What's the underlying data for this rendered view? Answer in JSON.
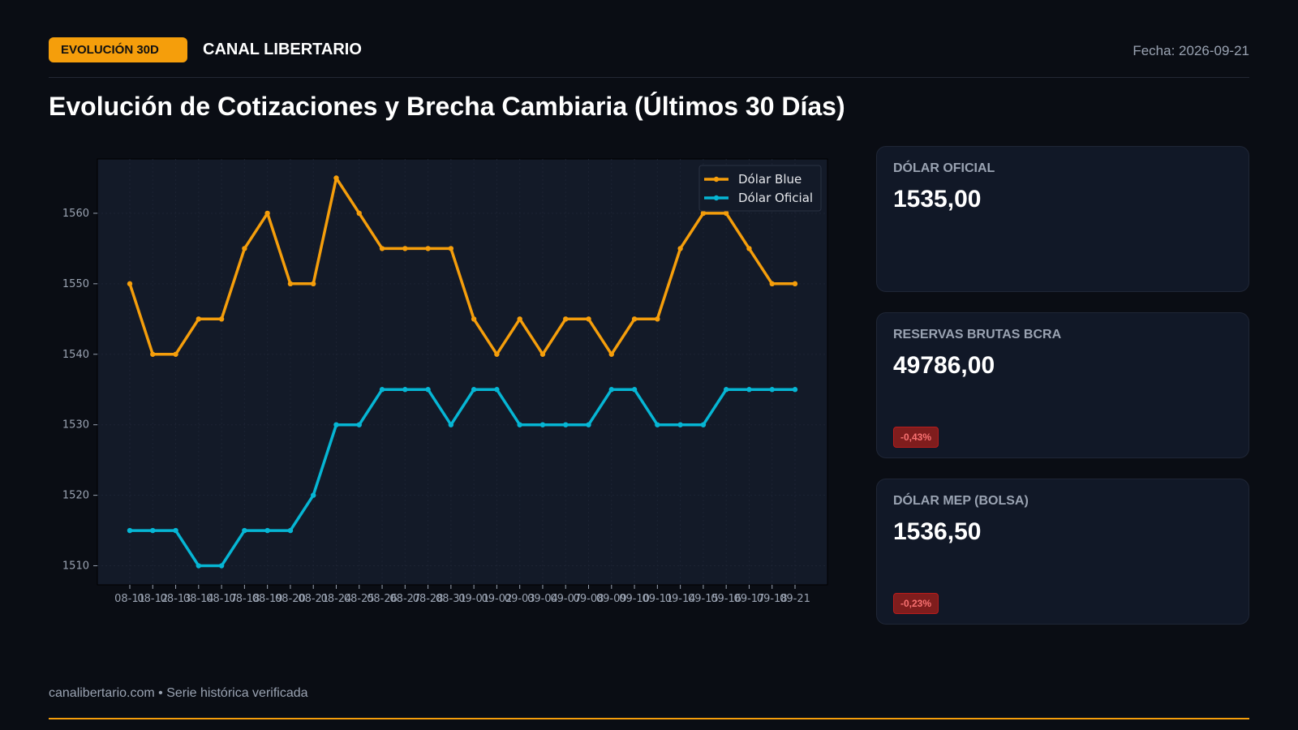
{
  "header": {
    "badge": "EVOLUCIÓN 30D",
    "brand": "CANAL LIBERTARIO",
    "date": "Fecha: 2026-09-21"
  },
  "title": "Evolución de Cotizaciones y Brecha Cambiaria (Últimos 30 Días)",
  "cards": [
    {
      "label": "DÓLAR OFICIAL",
      "value": "1535,00",
      "change": ""
    },
    {
      "label": "RESERVAS BRUTAS BCRA",
      "value": "49786,00",
      "change": "-0,43%"
    },
    {
      "label": "DÓLAR MEP (BOLSA)",
      "value": "1536,50",
      "change": "-0,23%"
    }
  ],
  "footer": {
    "text": "canalibertario.com • Serie histórica verificada"
  },
  "colors": {
    "accent": "#f59e0b",
    "blue_series": "#f59e0b",
    "oficial_series": "#06b6d4",
    "negative": "#ef4444"
  },
  "chart_data": {
    "type": "line",
    "title": "",
    "xlabel": "",
    "ylabel": "",
    "x": [
      "08-11",
      "08-12",
      "08-13",
      "08-14",
      "08-17",
      "08-18",
      "08-19",
      "08-20",
      "08-21",
      "08-24",
      "08-25",
      "08-26",
      "08-27",
      "08-28",
      "08-31",
      "09-01",
      "09-02",
      "09-03",
      "09-04",
      "09-07",
      "09-08",
      "09-09",
      "09-10",
      "09-11",
      "09-14",
      "09-15",
      "09-16",
      "09-17",
      "09-18",
      "09-21"
    ],
    "ylim": [
      1507.3,
      1567.7
    ],
    "yticks": [
      1510,
      1520,
      1530,
      1540,
      1550,
      1560
    ],
    "grid": true,
    "legend": "top-right",
    "series": [
      {
        "name": "Dólar Blue",
        "color": "#f59e0b",
        "values": [
          1550,
          1540,
          1540,
          1545,
          1545,
          1555,
          1560,
          1550,
          1550,
          1565,
          1560,
          1555,
          1555,
          1555,
          1555,
          1545,
          1540,
          1545,
          1540,
          1545,
          1545,
          1540,
          1545,
          1545,
          1555,
          1560,
          1560,
          1555,
          1550,
          1550
        ]
      },
      {
        "name": "Dólar Oficial",
        "color": "#06b6d4",
        "values": [
          1515,
          1515,
          1515,
          1510,
          1510,
          1515,
          1515,
          1515,
          1520,
          1530,
          1530,
          1535,
          1535,
          1535,
          1530,
          1535,
          1535,
          1530,
          1530,
          1530,
          1530,
          1535,
          1535,
          1530,
          1530,
          1530,
          1535,
          1535,
          1535,
          1535
        ]
      }
    ]
  }
}
